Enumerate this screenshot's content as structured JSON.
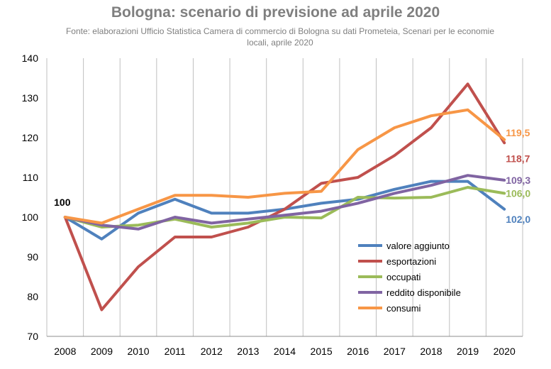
{
  "chart_data": {
    "type": "line",
    "title": "Bologna: scenario di previsione ad aprile 2020",
    "subtitle": "Fonte: elaborazioni Ufficio Statistica Camera di commercio di Bologna su dati Prometeia, Scenari per le economie locali, aprile 2020",
    "x": [
      "2008",
      "2009",
      "2010",
      "2011",
      "2012",
      "2013",
      "2014",
      "2015",
      "2016",
      "2017",
      "2018",
      "2019",
      "2020"
    ],
    "ylim": [
      70,
      140
    ],
    "yticks": [
      70,
      80,
      90,
      100,
      110,
      120,
      130,
      140
    ],
    "grid": "vertical",
    "legend_position": "bottom-right",
    "series": [
      {
        "name": "valore aggiunto",
        "color": "#4f81bd",
        "values": [
          100,
          94.5,
          101,
          104.5,
          101,
          101,
          102,
          103.5,
          104.5,
          107,
          109,
          109,
          102.0
        ],
        "end_label": "102,0"
      },
      {
        "name": "esportazioni",
        "color": "#c0504d",
        "values": [
          100,
          76.7,
          87.5,
          95,
          95,
          97.5,
          102,
          108.5,
          110,
          115.5,
          122.5,
          133.5,
          118.7
        ],
        "end_label": "118,7"
      },
      {
        "name": "occupati",
        "color": "#9bbb59",
        "values": [
          100,
          97.5,
          98,
          99.5,
          97.5,
          98.5,
          100,
          99.8,
          105,
          104.8,
          105,
          107.5,
          106.0
        ],
        "end_label": "106,0"
      },
      {
        "name": "reddito disponibile",
        "color": "#8064a2",
        "values": [
          100,
          98,
          97,
          100,
          98.5,
          99.5,
          100.5,
          101.5,
          103.5,
          106,
          108,
          110.5,
          109.3
        ],
        "end_label": "109,3"
      },
      {
        "name": "consumi",
        "color": "#f79646",
        "values": [
          100,
          98.5,
          102,
          105.5,
          105.5,
          105,
          106,
          106.5,
          117,
          122.5,
          125.5,
          127,
          119.5
        ],
        "end_label": "119,5"
      }
    ],
    "annotations": [
      {
        "text": "100",
        "x": "2008",
        "y": 100
      }
    ]
  }
}
